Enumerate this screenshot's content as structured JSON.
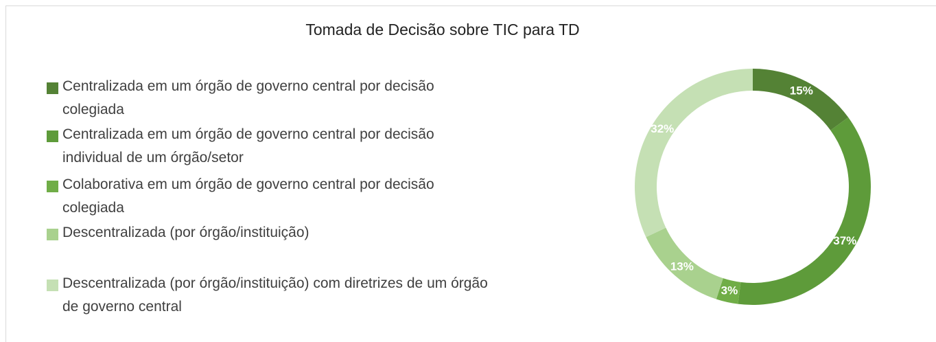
{
  "chart_data": {
    "type": "donut",
    "title": "Tomada de Decisão sobre TIC para TD",
    "categories": [
      "Centralizada em um órgão de governo central por decisão colegiada",
      "Centralizada em um órgão de governo central por decisão individual de um órgão/setor",
      "Colaborativa em um órgão de governo central por decisão colegiada",
      "Descentralizada (por órgão/instituição)",
      "Descentralizada (por órgão/instituição) com diretrizes de um órgão de governo central"
    ],
    "values": [
      15,
      37,
      3,
      13,
      32
    ],
    "value_labels": [
      "15%",
      "37%",
      "3%",
      "13%",
      "32%"
    ],
    "colors": [
      "#548235",
      "#5e9b3a",
      "#70ad47",
      "#a9d18e",
      "#c5e0b4"
    ],
    "legend": "left"
  }
}
